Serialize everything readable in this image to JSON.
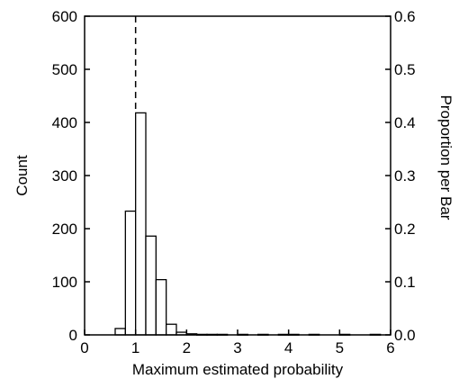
{
  "chart_data": {
    "type": "bar",
    "xlabel": "Maximum estimated probability",
    "ylabel": "Count",
    "y2label": "Proportion per Bar",
    "xlim": [
      0,
      6
    ],
    "ylim": [
      0,
      600
    ],
    "y2lim": [
      0,
      0.6
    ],
    "xticks": [
      "0",
      "1",
      "2",
      "3",
      "4",
      "5",
      "6"
    ],
    "yticks": [
      "0",
      "100",
      "200",
      "300",
      "400",
      "500",
      "600"
    ],
    "y2ticks": [
      "0.0",
      "0.1",
      "0.2",
      "0.3",
      "0.4",
      "0.5",
      "0.6"
    ],
    "bin_width": 0.2,
    "bins": [
      {
        "x0": 0.6,
        "x1": 0.8,
        "count": 12
      },
      {
        "x0": 0.8,
        "x1": 1.0,
        "count": 233
      },
      {
        "x0": 1.0,
        "x1": 1.2,
        "count": 418
      },
      {
        "x0": 1.2,
        "x1": 1.4,
        "count": 186
      },
      {
        "x0": 1.4,
        "x1": 1.6,
        "count": 104
      },
      {
        "x0": 1.6,
        "x1": 1.8,
        "count": 20
      },
      {
        "x0": 1.8,
        "x1": 2.0,
        "count": 5
      },
      {
        "x0": 2.0,
        "x1": 2.2,
        "count": 2
      },
      {
        "x0": 2.2,
        "x1": 2.4,
        "count": 1
      },
      {
        "x0": 2.4,
        "x1": 2.6,
        "count": 1
      },
      {
        "x0": 2.6,
        "x1": 2.8,
        "count": 1
      },
      {
        "x0": 3.0,
        "x1": 3.2,
        "count": 1
      },
      {
        "x0": 3.4,
        "x1": 3.6,
        "count": 1
      },
      {
        "x0": 3.8,
        "x1": 4.0,
        "count": 1
      },
      {
        "x0": 4.0,
        "x1": 4.2,
        "count": 1
      },
      {
        "x0": 4.4,
        "x1": 4.6,
        "count": 1
      },
      {
        "x0": 5.0,
        "x1": 5.2,
        "count": 1
      },
      {
        "x0": 5.6,
        "x1": 5.8,
        "count": 1
      }
    ],
    "reference_line": {
      "x": 1.0,
      "style": "dashed"
    },
    "grid": false,
    "legend": "none"
  }
}
